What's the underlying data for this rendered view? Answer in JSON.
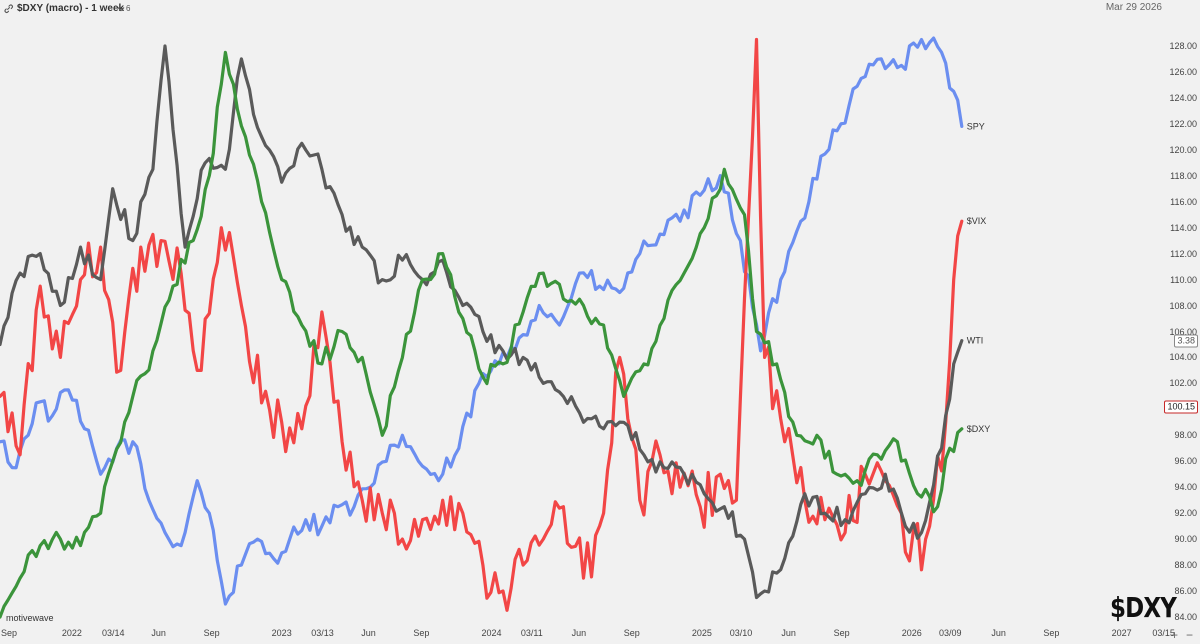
{
  "header": {
    "title": "$DXY (macro) - 1 week",
    "study_count": "6",
    "date": "Mar 29 2026",
    "link_icon": "link-icon",
    "chevron_icon": "chevron-down-icon"
  },
  "watermark": "motivewave",
  "ticker_badge": "$DXY",
  "controls": {
    "zoom_in": "+",
    "zoom_out": "−"
  },
  "chart_data": {
    "type": "line",
    "title": "$DXY (macro) - 1 week",
    "x_range": [
      "2021-08-29",
      "2027-03-21"
    ],
    "ylim": [
      84.0,
      130.0
    ],
    "y_ticks": [
      "128.00",
      "126.00",
      "124.00",
      "122.00",
      "120.00",
      "118.00",
      "116.00",
      "114.00",
      "112.00",
      "110.00",
      "108.00",
      "106.00",
      "104.00",
      "102.00",
      "100.00",
      "98.00",
      "96.00",
      "94.00",
      "92.00",
      "90.00",
      "88.00",
      "86.00",
      "84.00"
    ],
    "x_ticks": [
      {
        "label": "Sep",
        "date": "2021-09-01"
      },
      {
        "label": "2022",
        "date": "2022-01-01"
      },
      {
        "label": "03/14",
        "date": "2022-03-14"
      },
      {
        "label": "Jun",
        "date": "2022-06-01"
      },
      {
        "label": "Sep",
        "date": "2022-09-01"
      },
      {
        "label": "2023",
        "date": "2023-01-01"
      },
      {
        "label": "03/13",
        "date": "2023-03-13"
      },
      {
        "label": "Jun",
        "date": "2023-06-01"
      },
      {
        "label": "Sep",
        "date": "2023-09-01"
      },
      {
        "label": "2024",
        "date": "2024-01-01"
      },
      {
        "label": "03/11",
        "date": "2024-03-11"
      },
      {
        "label": "Jun",
        "date": "2024-06-01"
      },
      {
        "label": "Sep",
        "date": "2024-09-01"
      },
      {
        "label": "2025",
        "date": "2025-01-01"
      },
      {
        "label": "03/10",
        "date": "2025-03-10"
      },
      {
        "label": "Jun",
        "date": "2025-06-01"
      },
      {
        "label": "Sep",
        "date": "2025-09-01"
      },
      {
        "label": "2026",
        "date": "2026-01-01"
      },
      {
        "label": "03/09",
        "date": "2026-03-09"
      },
      {
        "label": "Jun",
        "date": "2026-06-01"
      },
      {
        "label": "Sep",
        "date": "2026-09-01"
      },
      {
        "label": "2027",
        "date": "2027-01-01"
      },
      {
        "label": "03/15",
        "date": "2027-03-15"
      }
    ],
    "last_value_badges": [
      {
        "label": "3.38",
        "value": 105.25,
        "bg": "#ffffff",
        "fg": "#555555",
        "border": "#888888"
      },
      {
        "label": "100.15",
        "value": 100.15,
        "bg": "#ffffff",
        "fg": "#222222",
        "border": "#c62828"
      }
    ],
    "series": [
      {
        "name": "SPY",
        "color": "#6b8ef0",
        "points": [
          [
            "2021-08-29",
            97.5
          ],
          [
            "2021-09-26",
            95.5
          ],
          [
            "2021-10-31",
            100.5
          ],
          [
            "2021-11-28",
            99.5
          ],
          [
            "2021-12-26",
            101.5
          ],
          [
            "2022-01-23",
            98.5
          ],
          [
            "2022-02-20",
            95.0
          ],
          [
            "2022-03-20",
            97.0
          ],
          [
            "2022-04-17",
            97.5
          ],
          [
            "2022-05-15",
            93.0
          ],
          [
            "2022-06-12",
            90.5
          ],
          [
            "2022-07-10",
            89.5
          ],
          [
            "2022-08-07",
            94.5
          ],
          [
            "2022-08-28",
            92.0
          ],
          [
            "2022-09-25",
            85.0
          ],
          [
            "2022-10-23",
            88.0
          ],
          [
            "2022-11-20",
            90.0
          ],
          [
            "2022-12-18",
            88.5
          ],
          [
            "2023-01-15",
            90.0
          ],
          [
            "2023-02-12",
            91.5
          ],
          [
            "2023-03-12",
            91.0
          ],
          [
            "2023-04-09",
            92.5
          ],
          [
            "2023-05-07",
            92.5
          ],
          [
            "2023-06-04",
            94.0
          ],
          [
            "2023-07-02",
            96.0
          ],
          [
            "2023-07-30",
            98.0
          ],
          [
            "2023-08-27",
            96.0
          ],
          [
            "2023-10-01",
            94.5
          ],
          [
            "2023-11-05",
            97.0
          ],
          [
            "2023-12-10",
            102.0
          ],
          [
            "2024-01-14",
            103.5
          ],
          [
            "2024-02-18",
            105.5
          ],
          [
            "2024-03-24",
            108.0
          ],
          [
            "2024-04-28",
            106.5
          ],
          [
            "2024-06-02",
            110.5
          ],
          [
            "2024-07-07",
            109.5
          ],
          [
            "2024-08-11",
            109.0
          ],
          [
            "2024-09-15",
            112.0
          ],
          [
            "2024-10-20",
            113.5
          ],
          [
            "2024-11-24",
            114.5
          ],
          [
            "2024-12-29",
            116.5
          ],
          [
            "2025-02-02",
            118.0
          ],
          [
            "2025-03-09",
            113.0
          ],
          [
            "2025-04-13",
            104.5
          ],
          [
            "2025-05-18",
            110.0
          ],
          [
            "2025-06-22",
            114.5
          ],
          [
            "2025-07-27",
            119.5
          ],
          [
            "2025-08-31",
            122.0
          ],
          [
            "2025-10-05",
            125.5
          ],
          [
            "2025-11-09",
            127.0
          ],
          [
            "2025-12-14",
            126.5
          ],
          [
            "2026-01-18",
            128.5
          ],
          [
            "2026-02-22",
            127.5
          ],
          [
            "2026-03-15",
            124.5
          ],
          [
            "2026-03-29",
            121.8
          ]
        ]
      },
      {
        "name": "$VIX",
        "color": "#f24646",
        "points": [
          [
            "2021-08-29",
            101.0
          ],
          [
            "2021-10-03",
            96.5
          ],
          [
            "2021-11-07",
            109.5
          ],
          [
            "2021-12-12",
            104.0
          ],
          [
            "2022-01-16",
            110.0
          ],
          [
            "2022-02-20",
            112.5
          ],
          [
            "2022-03-27",
            103.0
          ],
          [
            "2022-05-01",
            112.5
          ],
          [
            "2022-06-05",
            113.0
          ],
          [
            "2022-07-10",
            110.5
          ],
          [
            "2022-08-14",
            103.0
          ],
          [
            "2022-09-18",
            114.0
          ],
          [
            "2022-10-23",
            108.0
          ],
          [
            "2022-11-27",
            100.5
          ],
          [
            "2023-01-01",
            99.0
          ],
          [
            "2023-02-05",
            98.5
          ],
          [
            "2023-03-12",
            107.5
          ],
          [
            "2023-04-16",
            97.5
          ],
          [
            "2023-05-21",
            93.0
          ],
          [
            "2023-06-25",
            92.0
          ],
          [
            "2023-07-30",
            90.0
          ],
          [
            "2023-09-03",
            91.5
          ],
          [
            "2023-10-08",
            93.0
          ],
          [
            "2023-11-12",
            92.0
          ],
          [
            "2023-12-17",
            88.0
          ],
          [
            "2024-01-21",
            86.0
          ],
          [
            "2024-02-25",
            88.0
          ],
          [
            "2024-03-31",
            90.0
          ],
          [
            "2024-05-05",
            92.5
          ],
          [
            "2024-06-09",
            87.0
          ],
          [
            "2024-07-14",
            92.0
          ],
          [
            "2024-08-11",
            104.0
          ],
          [
            "2024-09-15",
            93.0
          ],
          [
            "2024-10-20",
            96.5
          ],
          [
            "2024-11-24",
            94.0
          ],
          [
            "2024-12-29",
            92.5
          ],
          [
            "2025-02-02",
            95.0
          ],
          [
            "2025-03-02",
            93.0
          ],
          [
            "2025-04-06",
            128.5
          ],
          [
            "2025-04-20",
            104.0
          ],
          [
            "2025-05-25",
            97.5
          ],
          [
            "2025-06-29",
            93.0
          ],
          [
            "2025-08-03",
            91.5
          ],
          [
            "2025-09-07",
            90.5
          ],
          [
            "2025-10-12",
            95.0
          ],
          [
            "2025-11-16",
            94.5
          ],
          [
            "2025-12-21",
            89.0
          ],
          [
            "2026-01-25",
            90.0
          ],
          [
            "2026-03-01",
            99.0
          ],
          [
            "2026-03-15",
            110.0
          ],
          [
            "2026-03-29",
            114.5
          ]
        ]
      },
      {
        "name": "WTI",
        "color": "#5a5a5a",
        "points": [
          [
            "2021-08-29",
            105.0
          ],
          [
            "2021-10-03",
            110.5
          ],
          [
            "2021-11-07",
            112.0
          ],
          [
            "2021-12-12",
            108.0
          ],
          [
            "2022-01-16",
            112.5
          ],
          [
            "2022-02-20",
            110.0
          ],
          [
            "2022-03-13",
            117.0
          ],
          [
            "2022-04-17",
            113.0
          ],
          [
            "2022-05-22",
            118.5
          ],
          [
            "2022-06-12",
            128.0
          ],
          [
            "2022-07-17",
            112.5
          ],
          [
            "2022-08-21",
            119.0
          ],
          [
            "2022-09-25",
            118.5
          ],
          [
            "2022-10-23",
            127.0
          ],
          [
            "2022-11-27",
            121.0
          ],
          [
            "2023-01-01",
            117.5
          ],
          [
            "2023-02-05",
            120.5
          ],
          [
            "2023-03-12",
            118.5
          ],
          [
            "2023-04-16",
            115.0
          ],
          [
            "2023-05-21",
            112.5
          ],
          [
            "2023-06-25",
            110.0
          ],
          [
            "2023-07-30",
            111.5
          ],
          [
            "2023-09-03",
            110.0
          ],
          [
            "2023-10-08",
            111.5
          ],
          [
            "2023-11-12",
            108.0
          ],
          [
            "2023-12-17",
            106.0
          ],
          [
            "2024-01-21",
            104.5
          ],
          [
            "2024-02-25",
            104.0
          ],
          [
            "2024-03-31",
            102.0
          ],
          [
            "2024-05-05",
            101.0
          ],
          [
            "2024-06-09",
            99.0
          ],
          [
            "2024-07-14",
            98.5
          ],
          [
            "2024-08-18",
            99.0
          ],
          [
            "2024-09-22",
            96.5
          ],
          [
            "2024-10-27",
            95.5
          ],
          [
            "2024-12-01",
            95.0
          ],
          [
            "2025-01-05",
            93.5
          ],
          [
            "2025-02-09",
            92.5
          ],
          [
            "2025-03-16",
            90.0
          ],
          [
            "2025-04-06",
            85.5
          ],
          [
            "2025-04-20",
            86.0
          ],
          [
            "2025-05-25",
            88.5
          ],
          [
            "2025-06-29",
            93.5
          ],
          [
            "2025-08-03",
            92.0
          ],
          [
            "2025-09-07",
            91.5
          ],
          [
            "2025-10-12",
            93.5
          ],
          [
            "2025-11-16",
            95.0
          ],
          [
            "2025-12-21",
            91.0
          ],
          [
            "2026-01-18",
            90.5
          ],
          [
            "2026-02-22",
            97.0
          ],
          [
            "2026-03-15",
            103.5
          ],
          [
            "2026-03-29",
            105.3
          ]
        ]
      },
      {
        "name": "$DXY",
        "color": "#3b943b",
        "points": [
          [
            "2021-08-29",
            84.0
          ],
          [
            "2021-10-03",
            87.0
          ],
          [
            "2021-11-07",
            89.5
          ],
          [
            "2021-12-12",
            90.0
          ],
          [
            "2022-01-16",
            89.5
          ],
          [
            "2022-02-20",
            92.0
          ],
          [
            "2022-03-13",
            96.0
          ],
          [
            "2022-04-17",
            101.0
          ],
          [
            "2022-05-22",
            104.5
          ],
          [
            "2022-06-26",
            109.5
          ],
          [
            "2022-07-31",
            113.0
          ],
          [
            "2022-08-28",
            118.0
          ],
          [
            "2022-09-25",
            127.5
          ],
          [
            "2022-10-30",
            121.0
          ],
          [
            "2022-11-27",
            116.0
          ],
          [
            "2023-01-01",
            110.0
          ],
          [
            "2023-02-05",
            106.5
          ],
          [
            "2023-03-12",
            103.5
          ],
          [
            "2023-04-16",
            106.0
          ],
          [
            "2023-05-21",
            104.0
          ],
          [
            "2023-06-25",
            98.0
          ],
          [
            "2023-07-30",
            104.0
          ],
          [
            "2023-09-03",
            110.0
          ],
          [
            "2023-10-08",
            112.0
          ],
          [
            "2023-11-12",
            107.0
          ],
          [
            "2023-12-17",
            102.5
          ],
          [
            "2024-01-21",
            103.5
          ],
          [
            "2024-02-25",
            107.5
          ],
          [
            "2024-03-31",
            110.5
          ],
          [
            "2024-05-05",
            108.5
          ],
          [
            "2024-06-09",
            108.0
          ],
          [
            "2024-07-14",
            106.5
          ],
          [
            "2024-08-18",
            101.0
          ],
          [
            "2024-09-22",
            103.5
          ],
          [
            "2024-10-27",
            107.0
          ],
          [
            "2024-12-01",
            110.5
          ],
          [
            "2025-01-05",
            114.0
          ],
          [
            "2025-02-09",
            118.5
          ],
          [
            "2025-03-16",
            115.0
          ],
          [
            "2025-04-06",
            106.0
          ],
          [
            "2025-05-11",
            103.5
          ],
          [
            "2025-06-15",
            98.0
          ],
          [
            "2025-07-20",
            98.0
          ],
          [
            "2025-08-24",
            95.0
          ],
          [
            "2025-09-28",
            94.5
          ],
          [
            "2025-11-02",
            96.5
          ],
          [
            "2025-12-07",
            97.5
          ],
          [
            "2026-01-11",
            93.5
          ],
          [
            "2026-02-15",
            92.5
          ],
          [
            "2026-03-08",
            97.0
          ],
          [
            "2026-03-29",
            98.5
          ]
        ]
      }
    ]
  }
}
